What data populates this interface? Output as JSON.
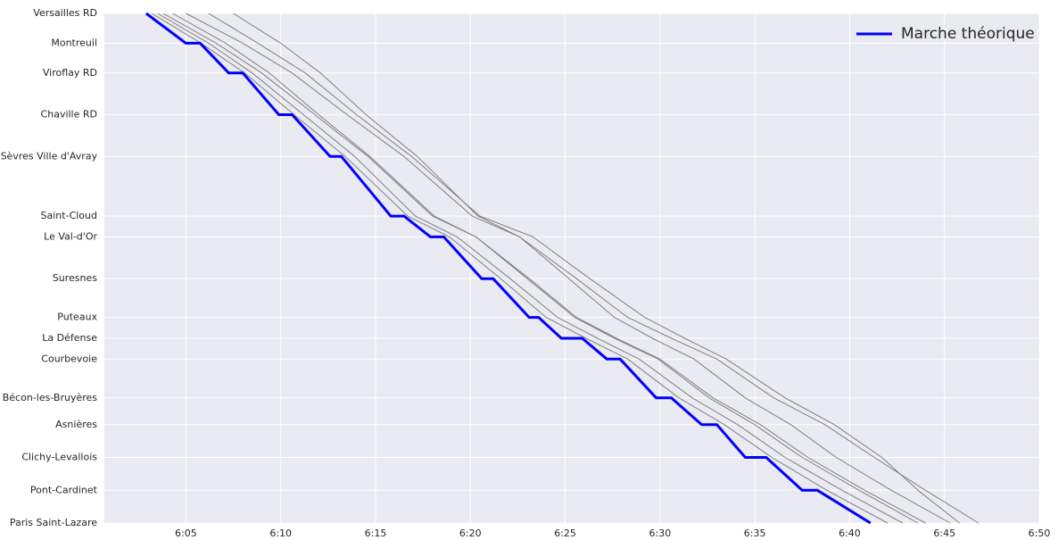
{
  "chart_data": {
    "type": "line",
    "y_inverted": true,
    "grid": true,
    "legend": "upper right",
    "xlim": [
      360.7,
      410
    ],
    "xticks": [
      {
        "value": 365,
        "label": "6:05"
      },
      {
        "value": 370,
        "label": "6:10"
      },
      {
        "value": 375,
        "label": "6:15"
      },
      {
        "value": 380,
        "label": "6:20"
      },
      {
        "value": 385,
        "label": "6:25"
      },
      {
        "value": 390,
        "label": "6:30"
      },
      {
        "value": 395,
        "label": "6:35"
      },
      {
        "value": 400,
        "label": "6:40"
      },
      {
        "value": 405,
        "label": "6:45"
      },
      {
        "value": 410,
        "label": "6:50"
      }
    ],
    "ylim": [
      0,
      17.1
    ],
    "yticks": [
      {
        "value": 0,
        "label": "Versailles RD"
      },
      {
        "value": 1.0,
        "label": "Montreuil"
      },
      {
        "value": 2.0,
        "label": "Viroflay RD"
      },
      {
        "value": 3.4,
        "label": "Chaville RD"
      },
      {
        "value": 4.8,
        "label": "Sèvres Ville d'Avray"
      },
      {
        "value": 6.8,
        "label": "Saint-Cloud"
      },
      {
        "value": 7.5,
        "label": "Le Val-d'Or"
      },
      {
        "value": 8.9,
        "label": "Suresnes"
      },
      {
        "value": 10.2,
        "label": "Puteaux"
      },
      {
        "value": 10.9,
        "label": "La Défense"
      },
      {
        "value": 11.6,
        "label": "Courbevoie"
      },
      {
        "value": 12.9,
        "label": "Bécon-les-Bruyères"
      },
      {
        "value": 13.8,
        "label": "Asnières"
      },
      {
        "value": 14.9,
        "label": "Clichy-Levallois"
      },
      {
        "value": 16.0,
        "label": "Pont-Cardinet"
      },
      {
        "value": 17.1,
        "label": "Paris Saint-Lazare"
      }
    ],
    "series": [
      {
        "color": "#808080",
        "x": [
          363.2,
          365.8,
          368.1,
          370.7,
          373.4,
          376.7,
          378.9,
          381.6,
          384.0,
          386.1,
          388.3,
          391.0,
          393.4,
          395.9,
          398.8,
          402.0
        ],
        "values": [
          0,
          1.0,
          2.0,
          3.4,
          4.8,
          6.8,
          7.5,
          8.9,
          10.2,
          10.9,
          11.6,
          12.9,
          13.8,
          14.9,
          16.0,
          17.1
        ]
      },
      {
        "color": "#808080",
        "x": [
          363.8,
          366.6,
          369.0,
          371.8,
          374.6,
          378.0,
          380.3,
          383.1,
          385.6,
          387.7,
          390.0,
          392.8,
          395.3,
          397.8,
          400.8,
          404.0
        ],
        "values": [
          0,
          1.0,
          2.0,
          3.4,
          4.8,
          6.8,
          7.5,
          8.9,
          10.2,
          10.9,
          11.6,
          12.9,
          13.8,
          14.9,
          16.0,
          17.1
        ]
      },
      {
        "color": "#808080",
        "x": [
          365.0,
          368.0,
          370.6,
          373.5,
          376.5,
          380.1,
          382.6,
          385.6,
          388.3,
          390.6,
          393.0,
          396.0,
          398.7,
          401.3,
          404.0,
          406.8
        ],
        "values": [
          0,
          1.0,
          2.0,
          3.4,
          4.8,
          6.8,
          7.5,
          8.9,
          10.2,
          10.9,
          11.6,
          12.9,
          13.8,
          14.9,
          16.0,
          17.1
        ]
      },
      {
        "color": "#808080",
        "x": [
          367.5,
          370.0,
          372.1,
          374.5,
          377.2,
          380.4,
          382.6,
          385.2,
          387.6,
          389.6,
          391.8,
          394.5,
          396.9,
          399.3,
          402.2,
          405.3
        ],
        "values": [
          0,
          1.0,
          2.0,
          3.4,
          4.8,
          6.8,
          7.5,
          8.9,
          10.2,
          10.9,
          11.6,
          12.9,
          13.8,
          14.9,
          16.0,
          17.1
        ]
      },
      {
        "color": "#808080",
        "x": [
          364.3,
          367.1,
          369.4,
          372.0,
          374.7,
          378.1,
          380.3,
          383.0,
          385.5,
          387.6,
          389.9,
          392.6,
          395.0,
          397.5,
          400.5,
          403.6
        ],
        "values": [
          0,
          1.0,
          2.0,
          3.4,
          4.8,
          6.8,
          7.5,
          8.9,
          10.2,
          10.9,
          11.6,
          12.9,
          13.8,
          14.9,
          16.0,
          17.1
        ]
      },
      {
        "color": "#808080",
        "x": [
          363.5,
          366.2,
          368.5,
          371.2,
          373.9,
          377.1,
          379.3,
          382.1,
          384.6,
          386.7,
          388.9,
          391.7,
          394.1,
          396.6,
          399.6,
          402.8
        ],
        "values": [
          0,
          1.0,
          2.0,
          3.4,
          4.8,
          6.8,
          7.5,
          8.9,
          10.2,
          10.9,
          11.6,
          12.9,
          13.8,
          14.9,
          16.0,
          17.1
        ]
      },
      {
        "color": "#808080",
        "x": [
          366.2,
          368.8,
          371.3,
          374.0,
          376.9,
          380.5,
          383.3,
          386.3,
          389.2,
          391.3,
          393.5,
          396.6,
          399.2,
          401.7,
          403.6,
          405.8
        ],
        "values": [
          0,
          1.0,
          2.0,
          3.4,
          4.8,
          6.8,
          7.5,
          8.9,
          10.2,
          10.9,
          11.6,
          12.9,
          13.8,
          14.9,
          16.0,
          17.1
        ]
      },
      {
        "name": "Marche théorique",
        "color": "#0000ff",
        "x": [
          362.9,
          365.0,
          365.75,
          367.26,
          368.0,
          369.9,
          370.6,
          372.6,
          373.2,
          375.8,
          376.5,
          377.9,
          378.6,
          380.6,
          381.2,
          383.1,
          383.6,
          384.8,
          385.9,
          387.2,
          387.9,
          389.8,
          390.6,
          392.2,
          393.0,
          394.5,
          395.6,
          397.5,
          398.3,
          401.1
        ],
        "values": [
          0,
          1.0,
          1.0,
          2.0,
          2.0,
          3.4,
          3.4,
          4.8,
          4.8,
          6.8,
          6.8,
          7.5,
          7.5,
          8.9,
          8.9,
          10.2,
          10.2,
          10.9,
          10.9,
          11.6,
          11.6,
          12.9,
          12.9,
          13.8,
          13.8,
          14.9,
          14.9,
          16.0,
          16.0,
          17.1
        ]
      }
    ]
  }
}
